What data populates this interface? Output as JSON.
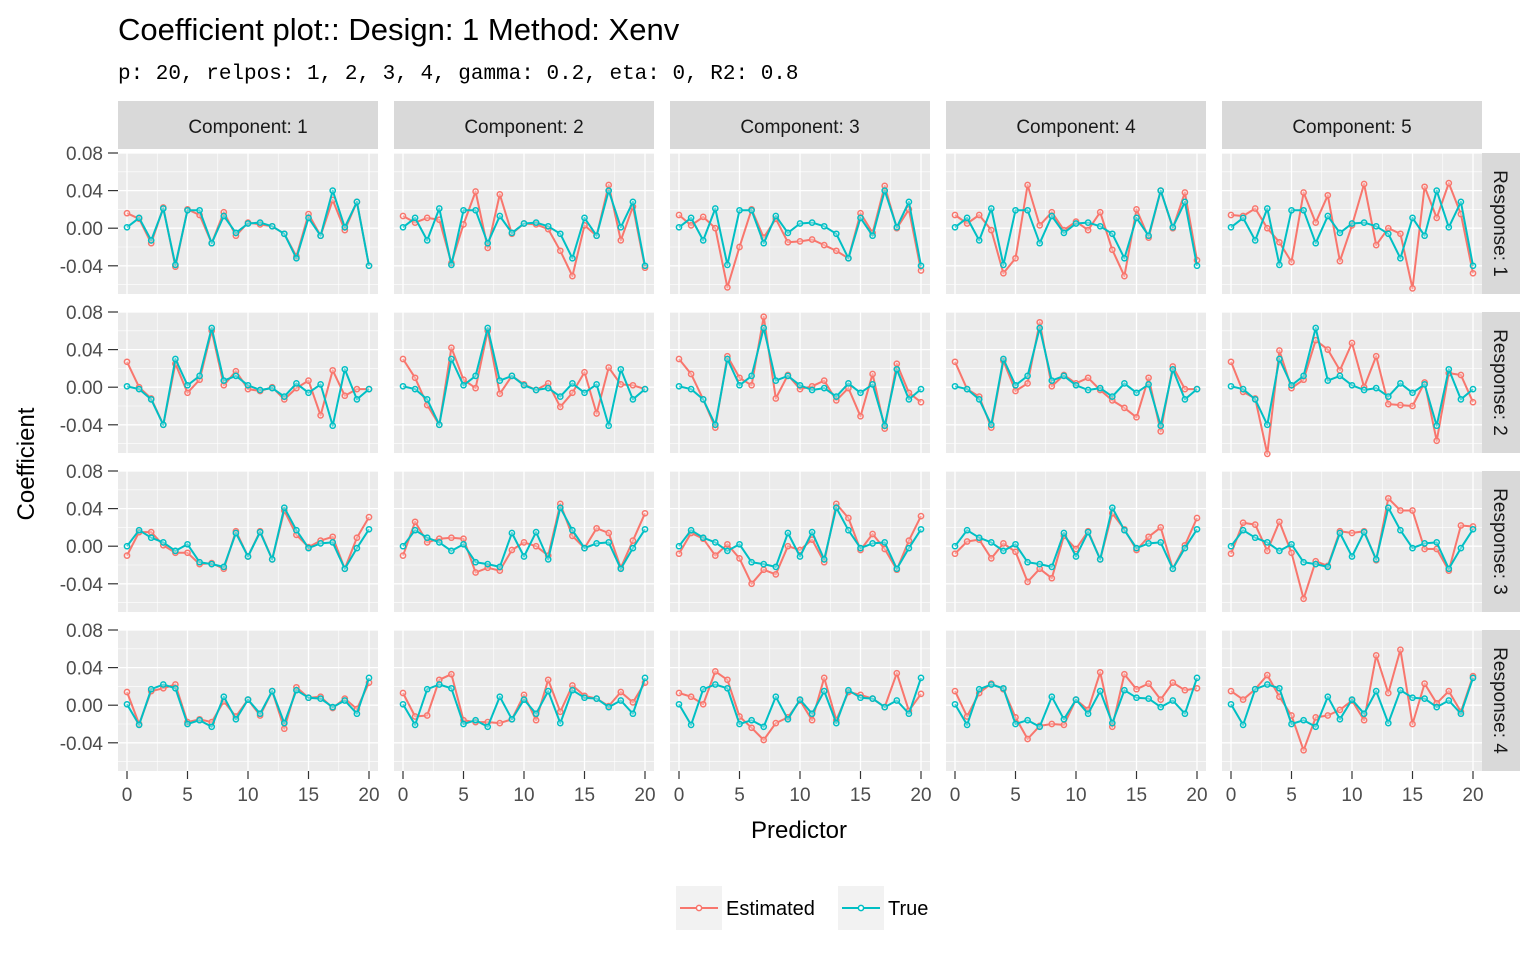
{
  "title": "Coefficient plot::  Design: 1 Method: Xenv",
  "subtitle": "p: 20, relpos: 1, 2, 3, 4, gamma: 0.2, eta: 0, R2: 0.8",
  "colors": {
    "estimated": "#F8766D",
    "true": "#00BFC4",
    "panel": "#EBEBEB",
    "strip": "#D9D9D9"
  },
  "chart_data": {
    "type": "line",
    "xlabel": "Predictor",
    "ylabel": "Coefficient",
    "xlim": [
      0,
      20
    ],
    "ylim": [
      -0.07,
      0.08
    ],
    "x_ticks": [
      "0",
      "5",
      "10",
      "15",
      "20"
    ],
    "y_ticks": [
      "0.08",
      "0.04",
      "0.00",
      "-0.04"
    ],
    "column_facets": [
      "Component: 1",
      "Component: 2",
      "Component: 3",
      "Component: 4",
      "Component: 5"
    ],
    "row_facets": [
      "Response: 1",
      "Response: 2",
      "Response: 3",
      "Response: 4"
    ],
    "legend": {
      "position": "bottom",
      "entries": [
        "Estimated",
        "True"
      ]
    },
    "x": [
      0,
      1,
      2,
      3,
      4,
      5,
      6,
      7,
      8,
      9,
      10,
      11,
      12,
      13,
      14,
      15,
      16,
      17,
      18,
      19,
      20
    ],
    "true": [
      [
        0.001,
        0.011,
        -0.013,
        0.021,
        -0.039,
        0.019,
        0.019,
        -0.016,
        0.013,
        -0.005,
        0.005,
        0.006,
        0.002,
        -0.006,
        -0.032,
        0.011,
        -0.008,
        0.04,
        0.001,
        0.028,
        -0.04
      ],
      [
        0.001,
        -0.002,
        -0.013,
        -0.04,
        0.03,
        0.002,
        0.012,
        0.063,
        0.007,
        0.012,
        0.002,
        -0.003,
        -0.001,
        -0.01,
        0.004,
        -0.006,
        0.003,
        -0.041,
        0.019,
        -0.013,
        -0.002
      ],
      [
        0.0,
        0.017,
        0.009,
        0.004,
        -0.005,
        0.002,
        -0.017,
        -0.019,
        -0.022,
        0.014,
        -0.011,
        0.015,
        -0.014,
        0.041,
        0.017,
        -0.002,
        0.003,
        0.004,
        -0.024,
        -0.002,
        0.018
      ],
      [
        0.001,
        -0.021,
        0.017,
        0.022,
        0.018,
        -0.02,
        -0.016,
        -0.023,
        0.009,
        -0.015,
        0.006,
        -0.009,
        0.015,
        -0.019,
        0.016,
        0.008,
        0.007,
        -0.002,
        0.005,
        -0.009,
        0.029
      ]
    ],
    "series": [
      {
        "name": "Estimated",
        "panels": [
          [
            [
              0.016,
              0.01,
              -0.016,
              0.022,
              -0.041,
              0.02,
              0.014,
              -0.016,
              0.017,
              -0.008,
              0.006,
              0.004,
              0.002,
              -0.006,
              -0.03,
              0.015,
              -0.008,
              0.03,
              -0.002,
              0.028,
              -0.04
            ],
            [
              0.013,
              0.006,
              0.011,
              0.009,
              -0.037,
              0.004,
              0.039,
              -0.021,
              0.036,
              -0.006,
              0.005,
              0.004,
              -0.001,
              -0.024,
              -0.051,
              0.003,
              -0.008,
              0.046,
              -0.013,
              0.023,
              -0.042
            ],
            [
              0.014,
              0.003,
              0.012,
              0.0,
              -0.063,
              -0.02,
              0.02,
              -0.01,
              0.01,
              -0.015,
              -0.014,
              -0.012,
              -0.018,
              -0.024,
              -0.032,
              0.016,
              -0.005,
              0.045,
              0.0,
              0.02,
              -0.045
            ],
            [
              0.014,
              0.005,
              0.014,
              -0.002,
              -0.048,
              -0.032,
              0.046,
              0.003,
              0.017,
              -0.002,
              0.007,
              -0.002,
              0.017,
              -0.023,
              -0.051,
              0.02,
              -0.01,
              0.04,
              0.0,
              0.038,
              -0.034
            ],
            [
              0.014,
              0.013,
              0.021,
              0.0,
              -0.015,
              -0.036,
              0.038,
              0.006,
              0.035,
              -0.035,
              0.003,
              0.047,
              -0.018,
              0.0,
              -0.006,
              -0.064,
              0.044,
              0.011,
              0.048,
              0.015,
              -0.048
            ]
          ],
          [
            [
              0.027,
              0.0,
              -0.012,
              -0.04,
              0.025,
              -0.006,
              0.008,
              0.06,
              0.002,
              0.017,
              -0.002,
              -0.004,
              0.0,
              -0.013,
              -0.001,
              0.007,
              -0.03,
              0.018,
              -0.009,
              -0.002,
              -0.002
            ],
            [
              0.03,
              0.01,
              -0.019,
              -0.04,
              0.042,
              0.008,
              -0.001,
              0.06,
              -0.007,
              0.012,
              0.003,
              -0.003,
              0.004,
              -0.021,
              -0.006,
              0.016,
              -0.028,
              0.021,
              0.003,
              0.002,
              -0.002
            ],
            [
              0.03,
              0.014,
              -0.013,
              -0.043,
              0.033,
              0.01,
              0.002,
              0.075,
              -0.012,
              0.013,
              -0.002,
              0.001,
              0.007,
              -0.014,
              -0.001,
              -0.031,
              0.014,
              -0.044,
              0.025,
              -0.006,
              -0.016
            ],
            [
              0.027,
              -0.002,
              -0.01,
              -0.043,
              0.028,
              -0.004,
              0.004,
              0.069,
              0.001,
              0.013,
              0.004,
              0.01,
              -0.003,
              -0.014,
              -0.022,
              -0.032,
              0.01,
              -0.047,
              0.022,
              -0.002,
              -0.002
            ],
            [
              0.027,
              -0.005,
              -0.012,
              -0.071,
              0.039,
              -0.001,
              0.008,
              0.05,
              0.04,
              0.018,
              0.047,
              0.0,
              0.033,
              -0.018,
              -0.019,
              -0.02,
              0.005,
              -0.057,
              0.015,
              0.013,
              -0.016
            ]
          ],
          [
            [
              -0.01,
              0.015,
              0.015,
              0.001,
              -0.007,
              -0.007,
              -0.019,
              -0.018,
              -0.024,
              0.016,
              -0.011,
              0.016,
              -0.014,
              0.038,
              0.012,
              -0.001,
              0.006,
              0.01,
              -0.024,
              0.009,
              0.031
            ],
            [
              -0.01,
              0.026,
              0.004,
              0.008,
              0.009,
              0.008,
              -0.028,
              -0.023,
              -0.026,
              -0.004,
              0.004,
              0.0,
              -0.01,
              0.045,
              0.011,
              -0.002,
              0.019,
              0.014,
              -0.023,
              0.006,
              0.035
            ],
            [
              -0.008,
              0.014,
              0.008,
              -0.01,
              0.002,
              -0.013,
              -0.04,
              -0.025,
              -0.03,
              0.0,
              -0.004,
              0.007,
              -0.017,
              0.045,
              0.03,
              -0.004,
              0.013,
              -0.003,
              -0.025,
              0.006,
              0.032
            ],
            [
              -0.008,
              0.005,
              0.007,
              -0.013,
              0.003,
              -0.006,
              -0.038,
              -0.024,
              -0.034,
              0.011,
              -0.003,
              0.016,
              -0.014,
              0.035,
              0.018,
              -0.004,
              0.01,
              0.02,
              -0.024,
              0.001,
              0.03
            ],
            [
              -0.008,
              0.025,
              0.023,
              -0.005,
              0.026,
              -0.007,
              -0.056,
              -0.016,
              -0.021,
              0.016,
              0.014,
              0.016,
              -0.015,
              0.051,
              0.038,
              0.038,
              -0.003,
              -0.003,
              -0.026,
              0.022,
              0.021
            ]
          ],
          [
            [
              0.014,
              -0.02,
              0.015,
              0.018,
              0.022,
              -0.018,
              -0.015,
              -0.018,
              0.004,
              -0.012,
              0.006,
              -0.011,
              0.015,
              -0.025,
              0.019,
              0.008,
              0.009,
              -0.003,
              0.007,
              -0.004,
              0.024
            ],
            [
              0.013,
              -0.012,
              -0.011,
              0.027,
              0.033,
              -0.016,
              -0.018,
              -0.018,
              -0.019,
              -0.015,
              0.011,
              -0.016,
              0.027,
              -0.007,
              0.021,
              0.01,
              0.007,
              -0.001,
              0.014,
              0.003,
              0.024
            ],
            [
              0.013,
              0.009,
              0.001,
              0.036,
              0.027,
              -0.012,
              -0.024,
              -0.037,
              -0.019,
              -0.013,
              0.005,
              -0.016,
              0.029,
              -0.016,
              0.014,
              0.011,
              0.007,
              -0.002,
              0.034,
              -0.006,
              0.012
            ],
            [
              0.015,
              -0.012,
              0.013,
              0.023,
              0.017,
              -0.013,
              -0.036,
              -0.022,
              -0.02,
              -0.021,
              0.006,
              -0.005,
              0.035,
              -0.023,
              0.033,
              0.017,
              0.023,
              0.006,
              0.024,
              0.016,
              0.018
            ],
            [
              0.015,
              0.006,
              0.017,
              0.032,
              0.009,
              -0.011,
              -0.048,
              -0.013,
              -0.011,
              -0.005,
              0.005,
              -0.016,
              0.053,
              0.013,
              0.059,
              -0.02,
              0.023,
              0.002,
              0.015,
              -0.007,
              0.031
            ]
          ]
        ]
      },
      {
        "name": "True",
        "panels": "same true curve per response row, repeated across component columns"
      }
    ]
  }
}
